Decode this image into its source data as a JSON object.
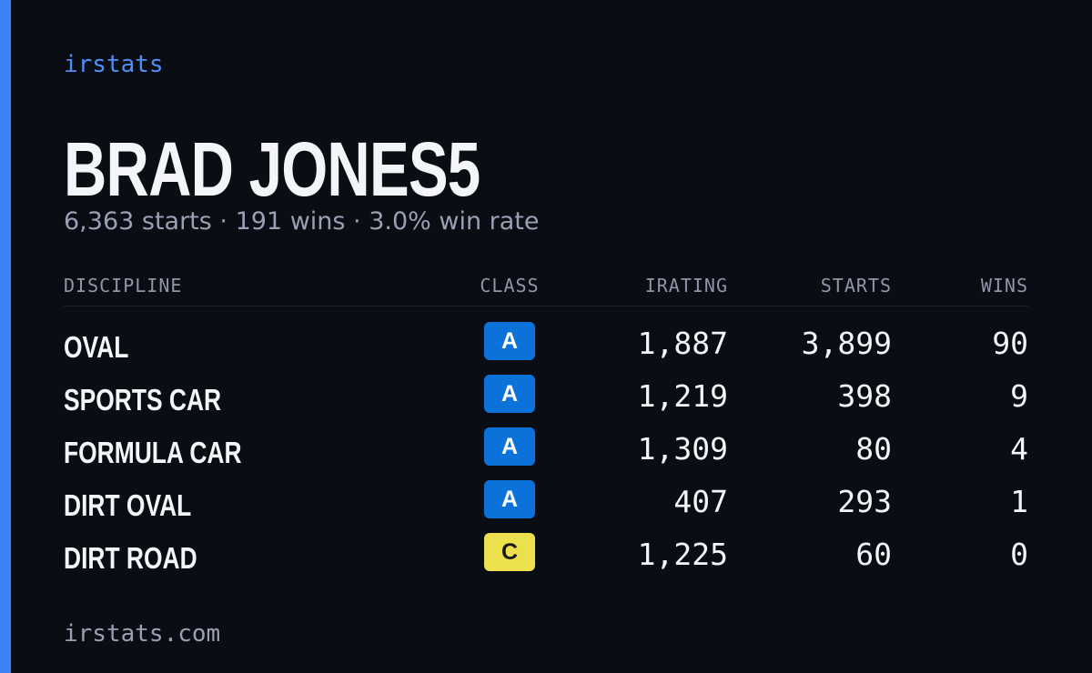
{
  "header": {
    "brand": "irstats",
    "name": "BRAD JONES5",
    "stats": "6,363 starts · 191 wins · 3.0% win rate"
  },
  "table": {
    "columns": [
      "DISCIPLINE",
      "CLASS",
      "IRATING",
      "STARTS",
      "WINS"
    ],
    "rows": [
      {
        "discipline": "OVAL",
        "class": "A",
        "class_color": "#0a72d8",
        "irating": "1,887",
        "starts": "3,899",
        "wins": "90"
      },
      {
        "discipline": "SPORTS CAR",
        "class": "A",
        "class_color": "#0a72d8",
        "irating": "1,219",
        "starts": "398",
        "wins": "9"
      },
      {
        "discipline": "FORMULA CAR",
        "class": "A",
        "class_color": "#0a72d8",
        "irating": "1,309",
        "starts": "80",
        "wins": "4"
      },
      {
        "discipline": "DIRT OVAL",
        "class": "A",
        "class_color": "#0a72d8",
        "irating": "407",
        "starts": "293",
        "wins": "1"
      },
      {
        "discipline": "DIRT ROAD",
        "class": "C",
        "class_color": "#ece14c",
        "irating": "1,225",
        "starts": "60",
        "wins": "0"
      }
    ]
  },
  "footer": {
    "site": "irstats.com"
  }
}
